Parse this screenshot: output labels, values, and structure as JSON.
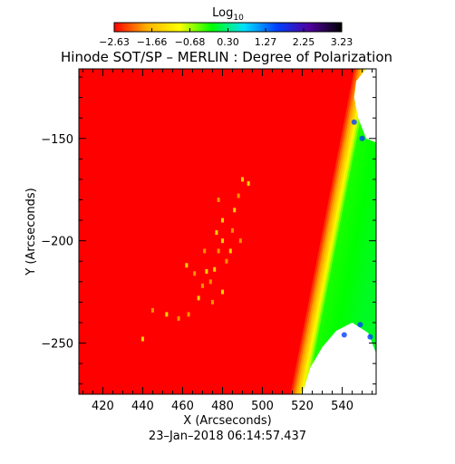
{
  "chart_data": {
    "type": "heatmap",
    "title": "Hinode SOT/SP – MERLIN : Degree of Polarization",
    "subtitle": "",
    "xlabel": "X (Arcseconds)",
    "ylabel": "Y (Arcseconds)",
    "date_label": "23–Jan–2018 06:14:57.437",
    "xlim": [
      408,
      557
    ],
    "ylim": [
      -275,
      -116
    ],
    "x_ticks": [
      420,
      440,
      460,
      480,
      500,
      520,
      540
    ],
    "y_ticks": [
      -250,
      -200,
      -150
    ],
    "x_tick_labels": [
      "420",
      "440",
      "460",
      "480",
      "500",
      "520",
      "540"
    ],
    "y_tick_labels": [
      "−250",
      "−200",
      "−150"
    ],
    "colorbar": {
      "label_main": "Log",
      "label_sub": "10",
      "ticks": [
        -2.63,
        -1.66,
        -0.68,
        0.3,
        1.27,
        2.25,
        3.23
      ],
      "tick_labels": [
        "−2.63",
        "−1.66",
        "−0.68",
        "0.30",
        "1.27",
        "2.25",
        "3.23"
      ],
      "range": [
        -2.63,
        3.23
      ],
      "colors": [
        "#ff0000",
        "#ffb000",
        "#ffff00",
        "#00ff00",
        "#00e0ff",
        "#0040ff",
        "#5000a0",
        "#000000"
      ]
    },
    "field": {
      "background_value": -2.63,
      "limb_x_bottom": 513,
      "limb_x_top": 545,
      "limb_ramp_arcsec": [
        0,
        4,
        9,
        30
      ],
      "limb_ramp_values": [
        -2.63,
        -1.66,
        -0.2,
        0.0
      ],
      "offdisk_color": "#ffffff",
      "feature_colors": [
        "#ff9000",
        "#ffd000"
      ],
      "features_xy": [
        [
          478,
          -205
        ],
        [
          480,
          -200
        ],
        [
          482,
          -210
        ],
        [
          476,
          -214
        ],
        [
          474,
          -220
        ],
        [
          472,
          -215
        ],
        [
          485,
          -195
        ],
        [
          486,
          -185
        ],
        [
          488,
          -178
        ],
        [
          480,
          -190
        ],
        [
          470,
          -222
        ],
        [
          468,
          -228
        ],
        [
          475,
          -230
        ],
        [
          490,
          -170
        ],
        [
          478,
          -180
        ],
        [
          484,
          -205
        ],
        [
          466,
          -216
        ],
        [
          462,
          -212
        ],
        [
          458,
          -238
        ],
        [
          452,
          -236
        ],
        [
          445,
          -234
        ],
        [
          440,
          -248
        ],
        [
          463,
          -236
        ],
        [
          480,
          -225
        ],
        [
          489,
          -200
        ],
        [
          477,
          -196
        ],
        [
          471,
          -205
        ],
        [
          493,
          -172
        ]
      ]
    }
  }
}
